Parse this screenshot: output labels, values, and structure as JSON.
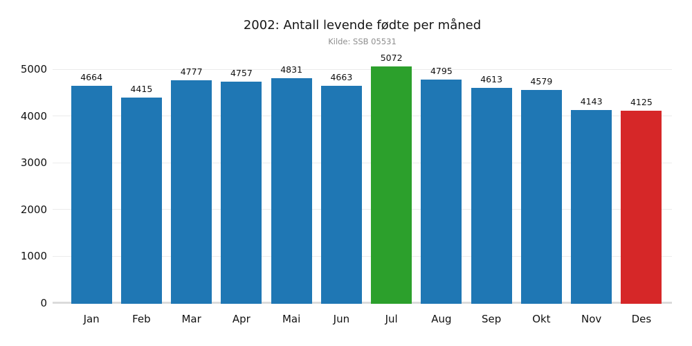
{
  "chart_data": {
    "type": "bar",
    "title": "2002: Antall levende fødte per måned",
    "subtitle": "Kilde: SSB 05531",
    "categories": [
      "Jan",
      "Feb",
      "Mar",
      "Apr",
      "Mai",
      "Jun",
      "Jul",
      "Aug",
      "Sep",
      "Okt",
      "Nov",
      "Des"
    ],
    "values": [
      4664,
      4415,
      4777,
      4757,
      4831,
      4663,
      5072,
      4795,
      4613,
      4579,
      4143,
      4125
    ],
    "bar_colors": [
      "#1f77b4",
      "#1f77b4",
      "#1f77b4",
      "#1f77b4",
      "#1f77b4",
      "#1f77b4",
      "#2ca02c",
      "#1f77b4",
      "#1f77b4",
      "#1f77b4",
      "#1f77b4",
      "#d62728"
    ],
    "value_labels": [
      "4664",
      "4415",
      "4777",
      "4757",
      "4831",
      "4663",
      "5072",
      "4795",
      "4613",
      "4579",
      "4143",
      "4125"
    ],
    "xlabel": "",
    "ylabel": "",
    "yticks": [
      0,
      1000,
      2000,
      3000,
      4000,
      5000
    ],
    "ytick_labels": [
      "0",
      "1000",
      "2000",
      "3000",
      "4000",
      "5000"
    ],
    "ylim": [
      0,
      5250
    ],
    "grid": true,
    "legend": "none",
    "colors": {
      "default_bar": "#1f77b4",
      "highlight_max": "#2ca02c",
      "highlight_min": "#d62728",
      "gridline": "#ebebeb",
      "axis_line": "#dbdbdb",
      "subtitle_text": "#8e8e8e",
      "text": "#111111",
      "background": "#ffffff"
    }
  }
}
